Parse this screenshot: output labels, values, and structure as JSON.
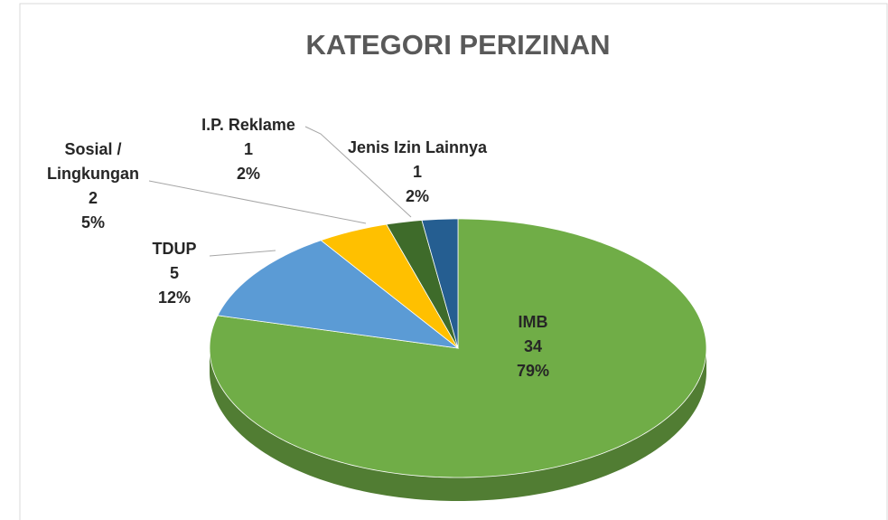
{
  "chart_data": {
    "type": "pie3d",
    "title": "KATEGORI PERIZINAN",
    "categories": [
      "IMB",
      "TDUP",
      "Sosial / Lingkungan",
      "I.P. Reklame",
      "Jenis Izin Lainnya"
    ],
    "values": [
      34,
      5,
      2,
      1,
      1
    ],
    "value_labels": [
      "79%",
      "12%",
      "5%",
      "2%",
      "2%"
    ],
    "colors": [
      "#70ad47",
      "#5b9bd5",
      "#ffc000",
      "#3e6b2a",
      "#255e91"
    ]
  }
}
